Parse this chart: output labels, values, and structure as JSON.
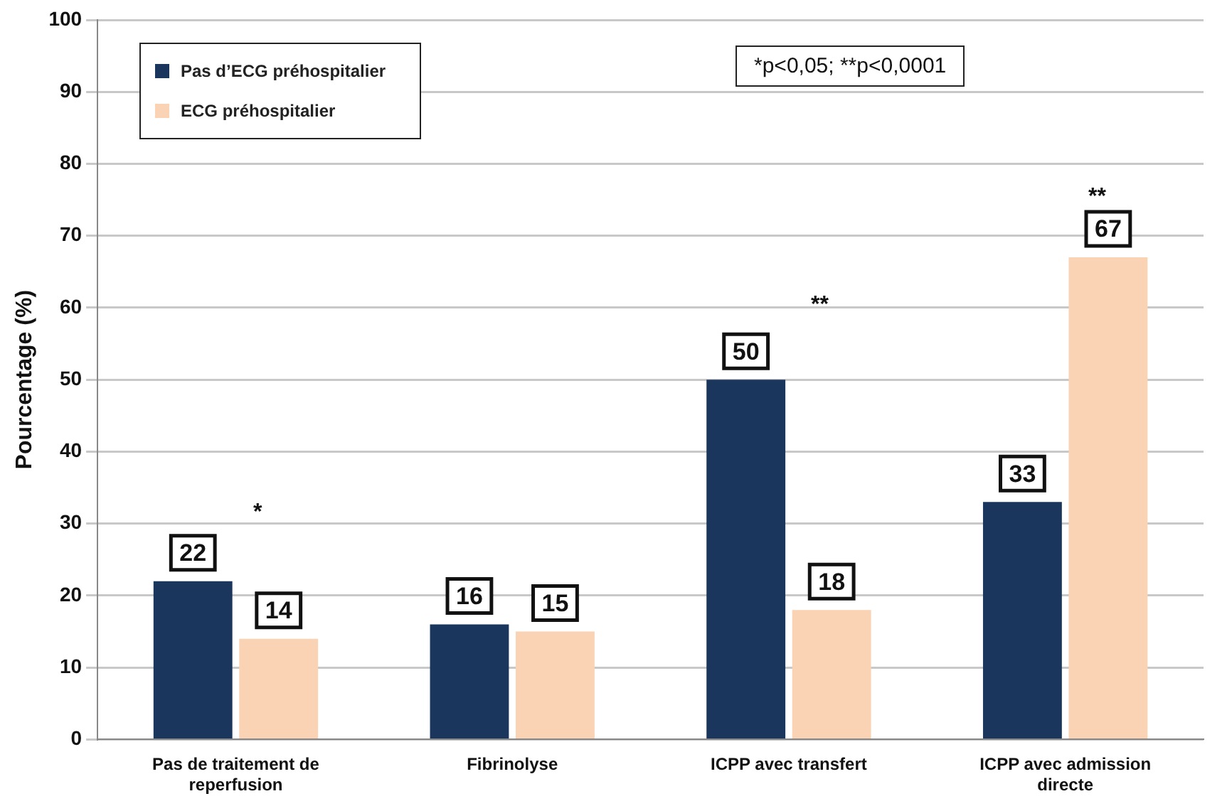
{
  "chart_data": {
    "type": "bar",
    "ylabel": "Pourcentage (%)",
    "categories": [
      "Pas de traitement de reperfusion",
      "Fibrinolyse",
      "ICPP avec transfert",
      "ICPP avec admission directe"
    ],
    "series": [
      {
        "name": "Pas d’ECG préhospitalier",
        "color": "#1b365d",
        "values": [
          22,
          16,
          50,
          33
        ]
      },
      {
        "name": "ECG préhospitalier",
        "color": "#fad2b4",
        "values": [
          14,
          15,
          18,
          67
        ]
      }
    ],
    "ylim": [
      0,
      100
    ],
    "yticks": [
      0,
      10,
      20,
      30,
      40,
      50,
      60,
      70,
      80,
      90,
      100
    ],
    "grid": "y",
    "legend": "top left",
    "data_labels": true,
    "annotations": [
      "*p<0,05; **p<0,0001",
      "*",
      "**",
      "**"
    ]
  }
}
